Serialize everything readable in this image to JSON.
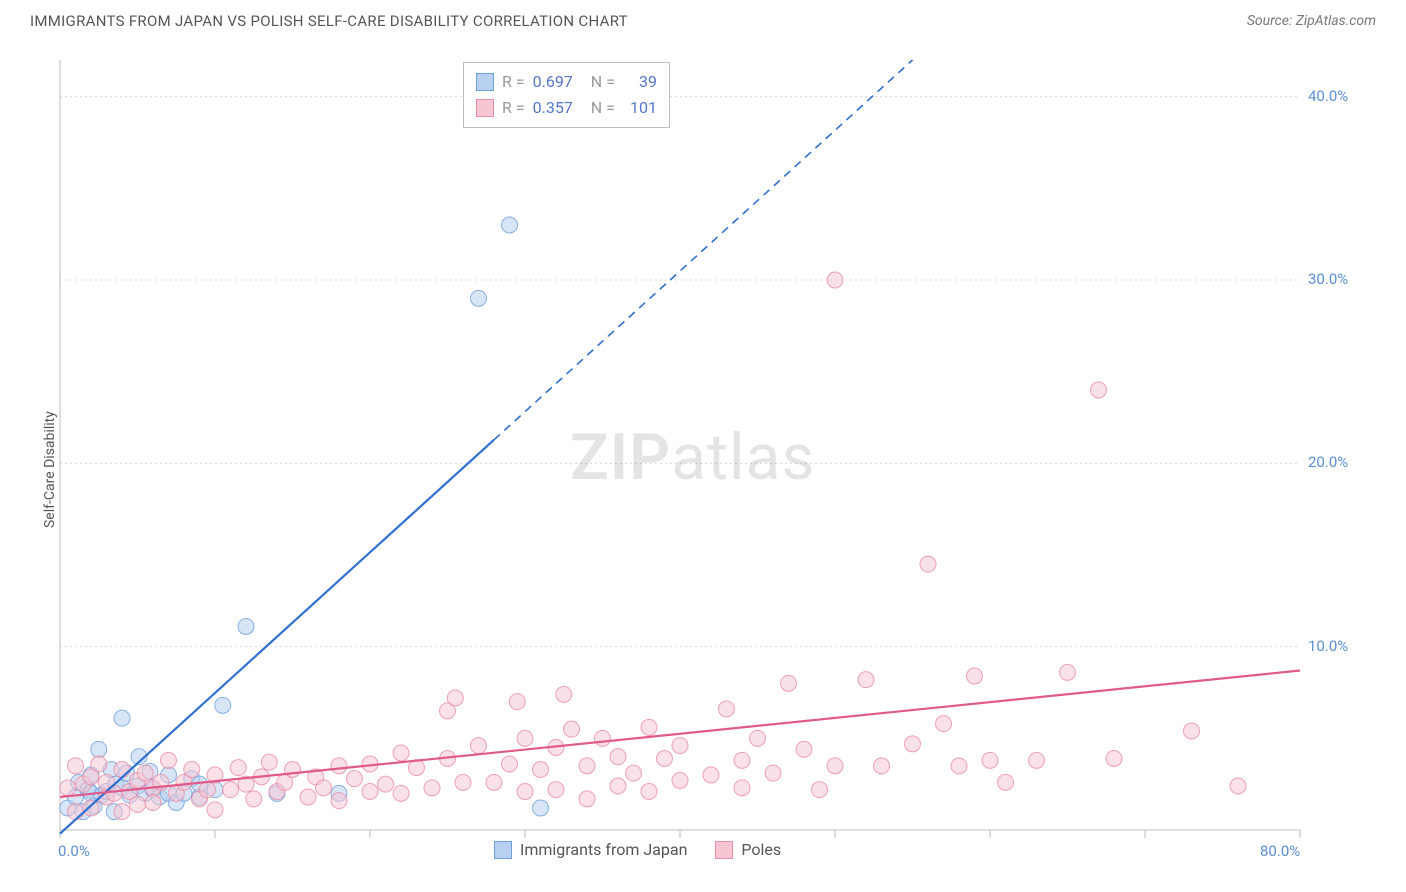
{
  "title": "IMMIGRANTS FROM JAPAN VS POLISH SELF-CARE DISABILITY CORRELATION CHART",
  "source": "Source: ZipAtlas.com",
  "y_axis_label": "Self-Care Disability",
  "watermark": {
    "part1": "ZIP",
    "part2": "atlas"
  },
  "chart": {
    "type": "scatter",
    "background_color": "#ffffff",
    "grid_color": "#d8d8d8",
    "grid_dash": "2,3",
    "axis_line_color": "#bdbdbd",
    "tick_color": "#bdbdbd",
    "tick_label_color": "#5b8fd4",
    "xlim": [
      0,
      80
    ],
    "ylim": [
      0,
      42
    ],
    "x_ticks": [
      0,
      10,
      20,
      30,
      40,
      50,
      60,
      70,
      80
    ],
    "x_tick_labels": {
      "0": "0.0%",
      "80": "80.0%"
    },
    "y_grid_lines": [
      10,
      20,
      30,
      40
    ],
    "y_tick_labels": {
      "10": "10.0%",
      "20": "20.0%",
      "30": "30.0%",
      "40": "40.0%"
    },
    "marker_radius": 8,
    "marker_opacity": 0.55,
    "line_width": 2.2,
    "series": [
      {
        "id": "japan",
        "label": "Immigrants from Japan",
        "color_fill": "#b7d0ef",
        "color_stroke": "#6f9fdc",
        "trend_color": "#2e6fd0",
        "trend_dash_after_x": 28,
        "R": 0.697,
        "N": 39,
        "trend": {
          "x1": 0,
          "y1": -0.2,
          "x2": 55,
          "y2": 42
        },
        "points": [
          [
            0.5,
            1.2
          ],
          [
            1,
            1.8
          ],
          [
            1.2,
            2.6
          ],
          [
            1.5,
            1.0
          ],
          [
            1.8,
            2.2
          ],
          [
            2,
            3.0
          ],
          [
            2,
            2.0
          ],
          [
            2.2,
            1.3
          ],
          [
            2.5,
            4.4
          ],
          [
            2.7,
            1.9
          ],
          [
            3,
            2.1
          ],
          [
            3.3,
            3.3
          ],
          [
            3.5,
            1.0
          ],
          [
            3.6,
            2.5
          ],
          [
            4,
            2.3
          ],
          [
            4,
            6.1
          ],
          [
            4.3,
            3.1
          ],
          [
            4.5,
            1.9
          ],
          [
            5,
            2.4
          ],
          [
            5.1,
            4.0
          ],
          [
            5.5,
            2.0
          ],
          [
            5.8,
            3.2
          ],
          [
            6,
            2.2
          ],
          [
            6.4,
            1.8
          ],
          [
            7,
            3.0
          ],
          [
            7,
            2.0
          ],
          [
            7.5,
            1.5
          ],
          [
            8,
            2.0
          ],
          [
            8.5,
            2.8
          ],
          [
            9,
            1.8
          ],
          [
            9,
            2.5
          ],
          [
            10,
            2.2
          ],
          [
            10.5,
            6.8
          ],
          [
            12,
            11.1
          ],
          [
            14,
            2.0
          ],
          [
            18,
            2.0
          ],
          [
            27,
            29.0
          ],
          [
            29,
            33.0
          ],
          [
            31,
            1.2
          ]
        ]
      },
      {
        "id": "poles",
        "label": "Poles",
        "color_fill": "#f6c7d3",
        "color_stroke": "#e98ca6",
        "trend_color": "#e05a8a",
        "trend_dash_after_x": null,
        "R": 0.357,
        "N": 101,
        "trend": {
          "x1": 0,
          "y1": 1.8,
          "x2": 80,
          "y2": 8.7
        },
        "points": [
          [
            0.5,
            2.3
          ],
          [
            1,
            3.5
          ],
          [
            1,
            1.0
          ],
          [
            1.5,
            2.5
          ],
          [
            2,
            1.2
          ],
          [
            2,
            2.9
          ],
          [
            2.5,
            3.6
          ],
          [
            3,
            1.8
          ],
          [
            3,
            2.6
          ],
          [
            3.5,
            2.0
          ],
          [
            4,
            3.3
          ],
          [
            4,
            1.0
          ],
          [
            4.5,
            2.1
          ],
          [
            5,
            2.7
          ],
          [
            5,
            1.4
          ],
          [
            5.5,
            3.1
          ],
          [
            6,
            2.3
          ],
          [
            6,
            1.5
          ],
          [
            6.5,
            2.6
          ],
          [
            7,
            3.8
          ],
          [
            7.5,
            2.0
          ],
          [
            8,
            2.6
          ],
          [
            8.5,
            3.3
          ],
          [
            9,
            1.7
          ],
          [
            9.5,
            2.2
          ],
          [
            10,
            3.0
          ],
          [
            10,
            1.1
          ],
          [
            11,
            2.2
          ],
          [
            11.5,
            3.4
          ],
          [
            12,
            2.5
          ],
          [
            12.5,
            1.7
          ],
          [
            13,
            2.9
          ],
          [
            13.5,
            3.7
          ],
          [
            14,
            2.1
          ],
          [
            14.5,
            2.6
          ],
          [
            15,
            3.3
          ],
          [
            16,
            1.8
          ],
          [
            16.5,
            2.9
          ],
          [
            17,
            2.3
          ],
          [
            18,
            3.5
          ],
          [
            18,
            1.6
          ],
          [
            19,
            2.8
          ],
          [
            20,
            2.1
          ],
          [
            20,
            3.6
          ],
          [
            21,
            2.5
          ],
          [
            22,
            4.2
          ],
          [
            22,
            2.0
          ],
          [
            23,
            3.4
          ],
          [
            24,
            2.3
          ],
          [
            25,
            3.9
          ],
          [
            25,
            6.5
          ],
          [
            25.5,
            7.2
          ],
          [
            26,
            2.6
          ],
          [
            27,
            4.6
          ],
          [
            28,
            2.6
          ],
          [
            29,
            3.6
          ],
          [
            29.5,
            7.0
          ],
          [
            30,
            2.1
          ],
          [
            30,
            5.0
          ],
          [
            31,
            3.3
          ],
          [
            32,
            2.2
          ],
          [
            32,
            4.5
          ],
          [
            32.5,
            7.4
          ],
          [
            33,
            5.5
          ],
          [
            34,
            1.7
          ],
          [
            34,
            3.5
          ],
          [
            35,
            5.0
          ],
          [
            36,
            2.4
          ],
          [
            36,
            4.0
          ],
          [
            37,
            3.1
          ],
          [
            38,
            5.6
          ],
          [
            38,
            2.1
          ],
          [
            39,
            3.9
          ],
          [
            40,
            2.7
          ],
          [
            40,
            4.6
          ],
          [
            42,
            3.0
          ],
          [
            43,
            6.6
          ],
          [
            44,
            3.8
          ],
          [
            44,
            2.3
          ],
          [
            45,
            5.0
          ],
          [
            46,
            3.1
          ],
          [
            47,
            8.0
          ],
          [
            48,
            4.4
          ],
          [
            49,
            2.2
          ],
          [
            50,
            30.0
          ],
          [
            50,
            3.5
          ],
          [
            52,
            8.2
          ],
          [
            53,
            3.5
          ],
          [
            55,
            4.7
          ],
          [
            56,
            14.5
          ],
          [
            57,
            5.8
          ],
          [
            58,
            3.5
          ],
          [
            59,
            8.4
          ],
          [
            60,
            3.8
          ],
          [
            61,
            2.6
          ],
          [
            63,
            3.8
          ],
          [
            65,
            8.6
          ],
          [
            67,
            24.0
          ],
          [
            68,
            3.9
          ],
          [
            73,
            5.4
          ],
          [
            76,
            2.4
          ]
        ]
      }
    ]
  },
  "legend_top": {
    "r_label": "R =",
    "n_label": "N ="
  }
}
